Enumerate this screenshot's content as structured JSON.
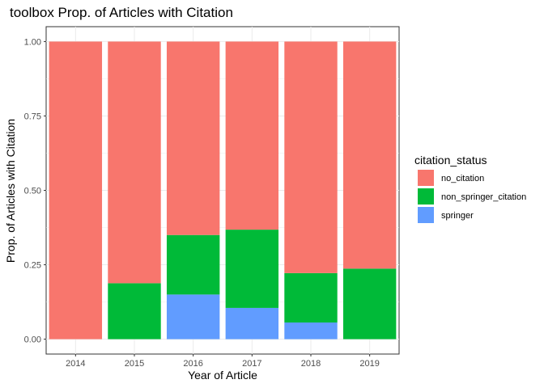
{
  "chart_data": {
    "type": "bar",
    "stacked": true,
    "title": "toolbox Prop. of Articles with Citation",
    "xlabel": "Year of Article",
    "ylabel": "Prop. of Articles with Citation",
    "ylim": [
      0,
      1
    ],
    "yticks": [
      "0.00",
      "0.25",
      "0.50",
      "0.75",
      "1.00"
    ],
    "categories": [
      "2014",
      "2015",
      "2016",
      "2017",
      "2018",
      "2019"
    ],
    "grid": true,
    "legend": {
      "title": "citation_status",
      "position": "right"
    },
    "series": [
      {
        "name": "springer",
        "color": "#619CFF",
        "values": [
          0,
          0,
          0.15,
          0.105,
          0.056,
          0
        ]
      },
      {
        "name": "non_springer_citation",
        "color": "#00BA38",
        "values": [
          0,
          0.188,
          0.2,
          0.263,
          0.166,
          0.237
        ]
      },
      {
        "name": "no_citation",
        "color": "#F8766D",
        "values": [
          1,
          0.812,
          0.65,
          0.632,
          0.778,
          0.763
        ]
      }
    ],
    "legend_order": [
      "no_citation",
      "non_springer_citation",
      "springer"
    ]
  }
}
